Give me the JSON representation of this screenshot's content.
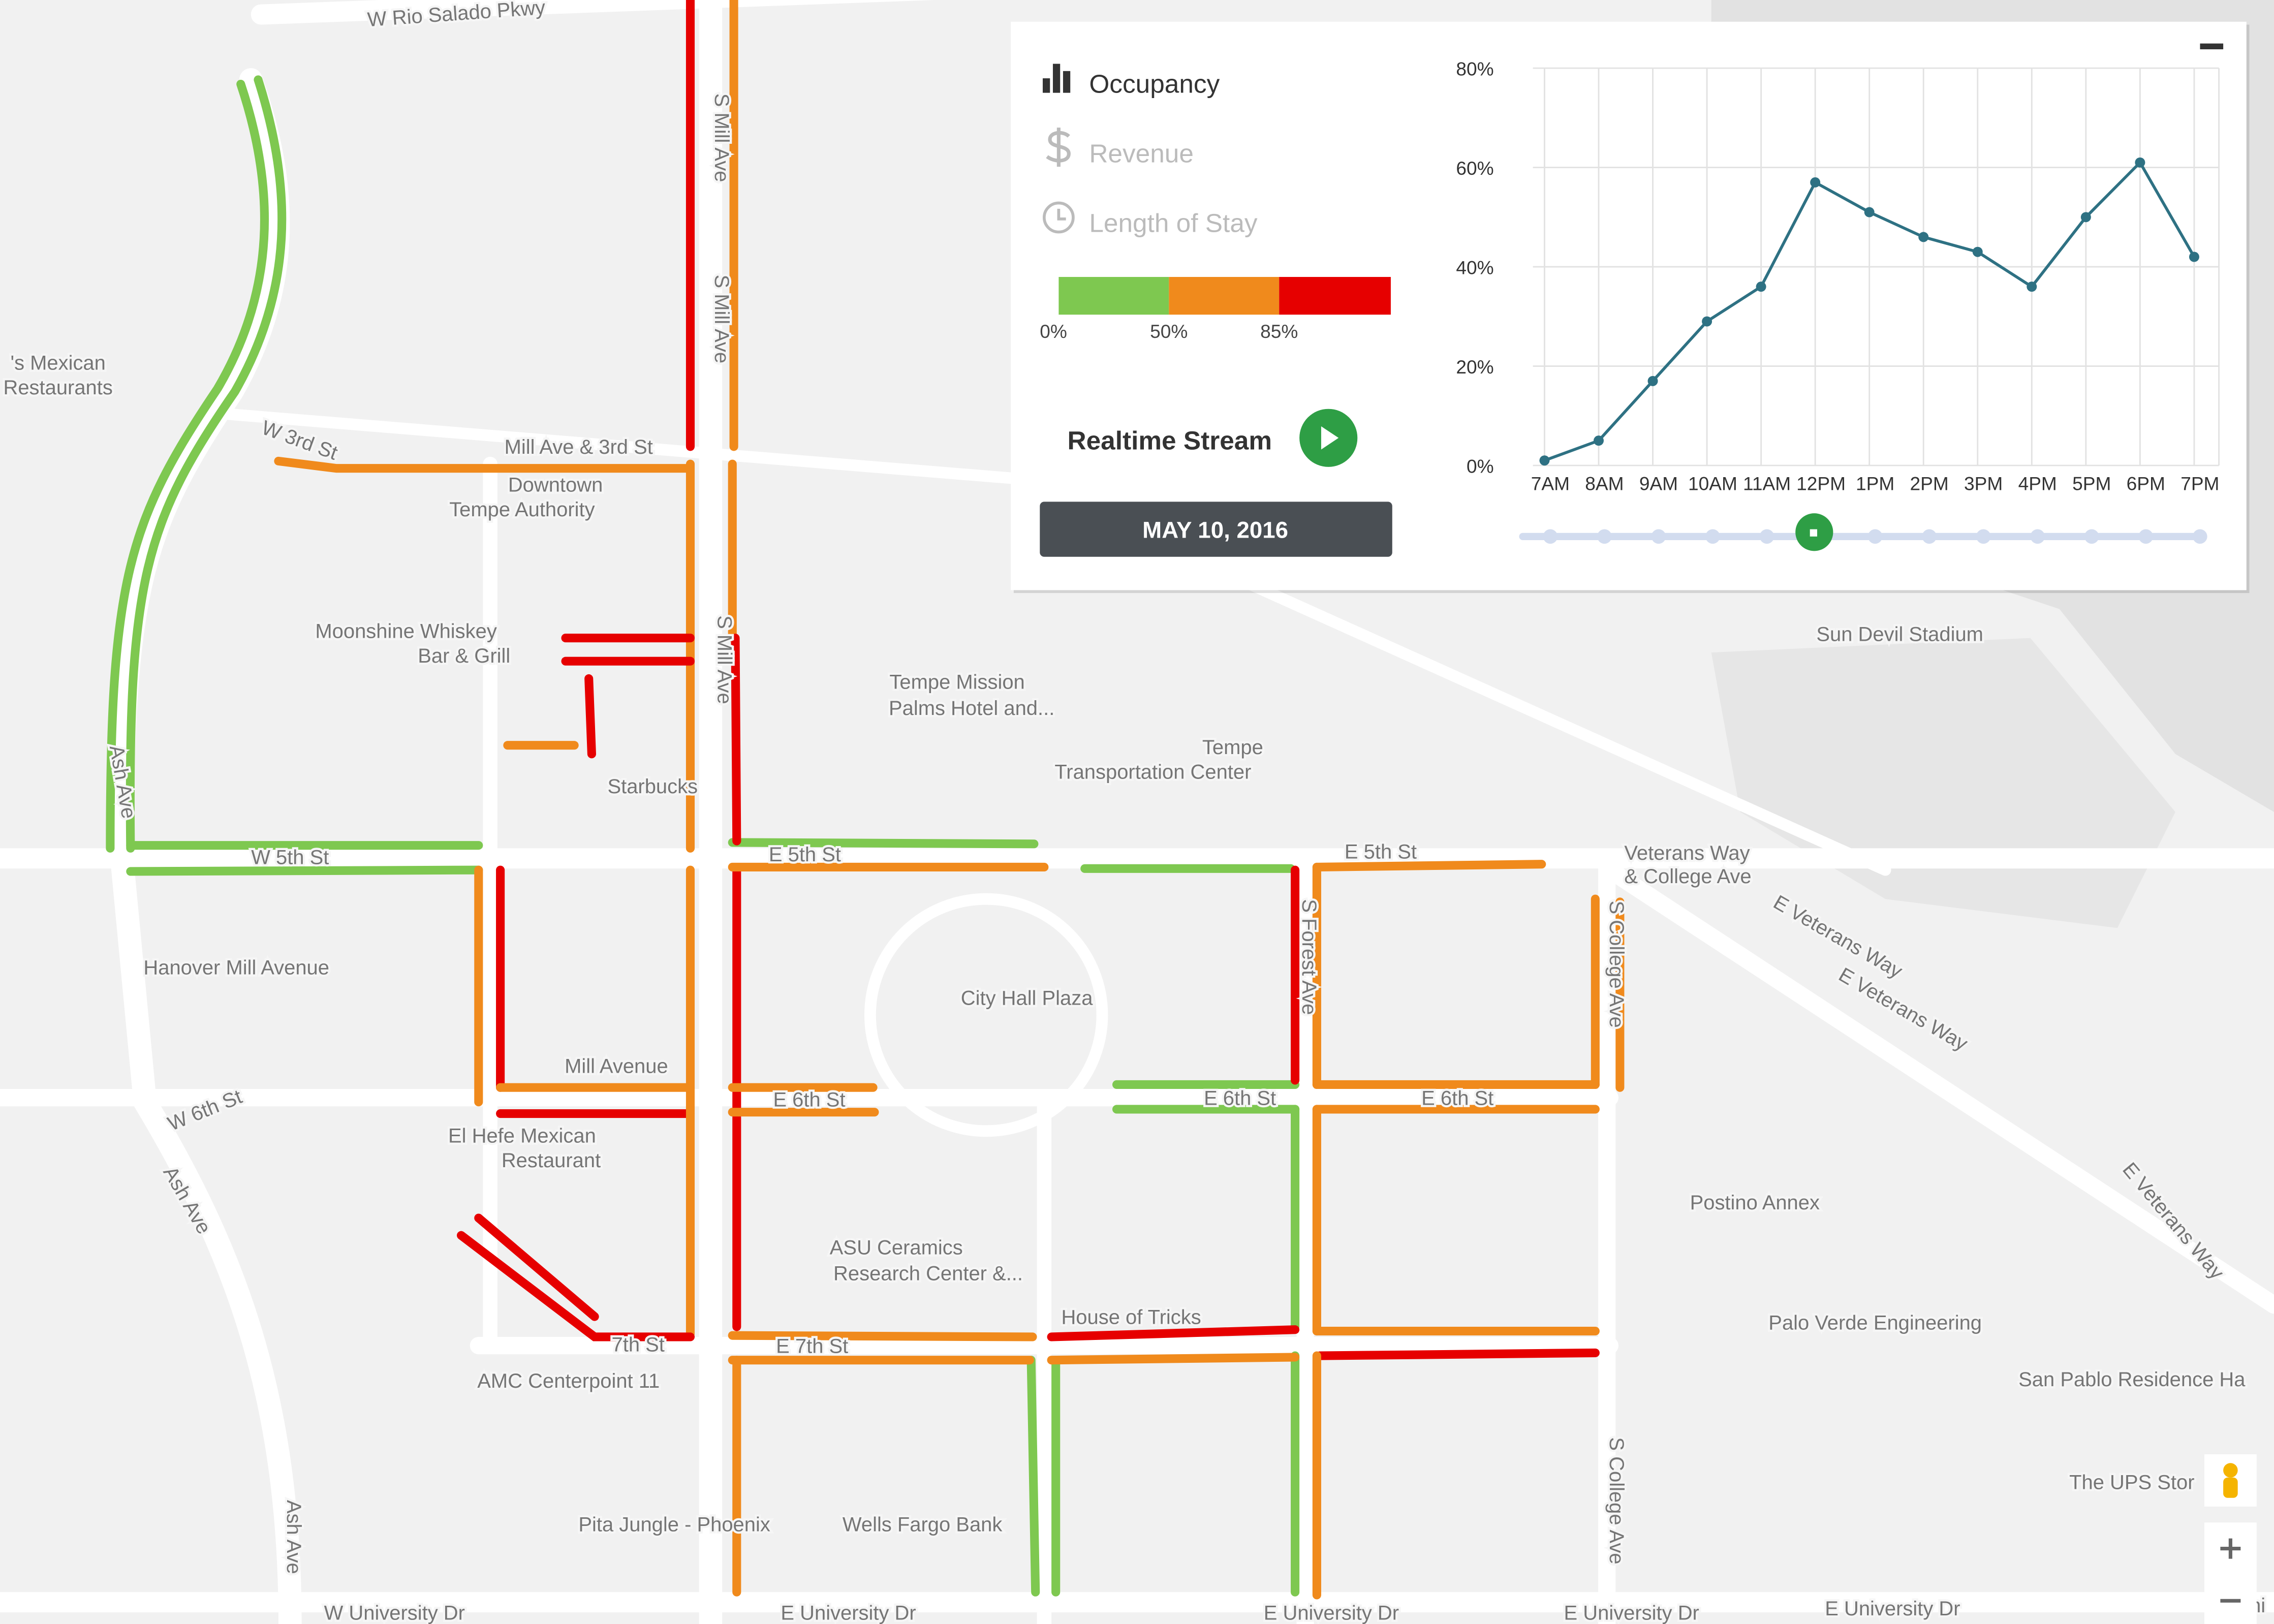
{
  "map": {
    "labels": [
      "W Rio Salado Pkwy",
      "S Mill Ave",
      "S Mill Ave",
      "S Mill Ave",
      "Mill Ave & 3rd St",
      "Downtown",
      "Tempe Authority",
      "Moonshine Whiskey",
      "Bar & Grill",
      "Tempe Mission",
      "Palms Hotel and...",
      "Tempe",
      "Transportation Center",
      "Starbucks",
      "Sun Devil Stadium",
      "W 3rd St",
      "W 5th St",
      "E 5th St",
      "E 5th St",
      "Veterans Way",
      "& College Ave",
      "E Veterans Way",
      "E Veterans Way",
      "Hanover Mill Avenue",
      "City Hall Plaza",
      "Mill Avenue",
      "W 6th St",
      "El Hefe Mexican",
      "Restaurant",
      "Ash Ave",
      "E 6th St",
      "E 6th St",
      "E 6th St",
      "Postino Annex",
      "ASU Ceramics",
      "Research Center &...",
      "House of Tricks",
      "Palo Verde Engineering",
      "AMC Centerpoint 11",
      "San Pablo Residence Ha",
      "Pita Jungle - Phoenix",
      "Wells Fargo Bank",
      "The UPS Stor",
      "W University Dr",
      "E University Dr",
      "E University Dr",
      "E University Dr",
      "E University Dr",
      "E Uni",
      "Ash Ave",
      "S College Ave",
      "S College Ave",
      "'s Mexican",
      "Restaurants",
      "E 7th St",
      "7th St",
      "S Forest Ave",
      "Ash Ave",
      "E Veterans Way"
    ]
  },
  "panel": {
    "metrics": [
      "Occupancy",
      "Revenue",
      "Length of Stay"
    ],
    "scale": {
      "labels": [
        "0%",
        "50%",
        "85%"
      ],
      "colors": [
        "#7ec850",
        "#f08a1c",
        "#e60000"
      ]
    },
    "stream_label": "Realtime Stream",
    "date": "MAY 10, 2016"
  },
  "chart_data": {
    "type": "line",
    "categories": [
      "7AM",
      "8AM",
      "9AM",
      "10AM",
      "11AM",
      "12PM",
      "1PM",
      "2PM",
      "3PM",
      "4PM",
      "5PM",
      "6PM",
      "7PM"
    ],
    "values": [
      1,
      5,
      17,
      29,
      36,
      57,
      51,
      46,
      43,
      36,
      50,
      61,
      42
    ],
    "color": "#2e7183",
    "ylim": [
      0,
      80
    ],
    "yticks": [
      {
        "value": 0,
        "label": "0%"
      },
      {
        "value": 20,
        "label": "20%"
      },
      {
        "value": 40,
        "label": "40%"
      },
      {
        "value": 60,
        "label": "60%"
      },
      {
        "value": 80,
        "label": "80%"
      }
    ],
    "grid": true
  }
}
